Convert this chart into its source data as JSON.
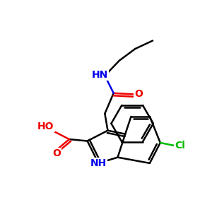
{
  "background": "#ffffff",
  "bond_color": "#000000",
  "bond_width": 1.8,
  "atom_colors": {
    "N": "#0000ee",
    "O": "#ee0000",
    "Cl": "#00bb00",
    "C": "#000000"
  },
  "font_size": 10,
  "fig_size": [
    3.0,
    3.0
  ],
  "dpi": 100,
  "xlim": [
    -1,
    11
  ],
  "ylim": [
    -1,
    11
  ]
}
